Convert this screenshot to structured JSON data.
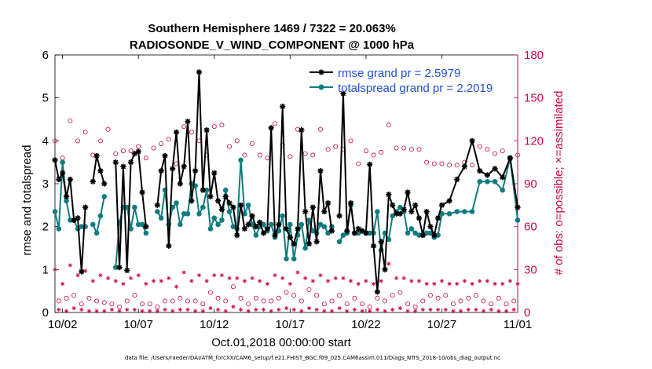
{
  "colors": {
    "rmse": "#000000",
    "totalspread": "#117c7f",
    "obs": "#c8094f",
    "legend_text": "#1f4fd8"
  },
  "chart_data": {
    "type": "line",
    "title": "Southern Hemisphere 1469 / 7322 = 20.063%",
    "subtitle": "RADIOSONDE_V_WIND_COMPONENT @ 1000 hPa",
    "xlabel": "Oct.01,2018 00:00:00 start",
    "ylabel": "rmse and totalspread",
    "y2label": "# of obs: o=possible; ×=assimilated",
    "footer": "data file: /Users/raeder/DAI/ATM_forcXX/CAM6_setup/f.e21.FHIST_BGC.f09_025.CAM6assim.011/Diags_NTrS_2018-10/obs_diag_output.nc",
    "x_unit": "days since Oct.01,2018 00:00:00",
    "xlim": [
      0.5,
      31.0
    ],
    "ylim": [
      0,
      6
    ],
    "y2lim": [
      0,
      180
    ],
    "x_ticks": [
      1,
      6,
      11,
      16,
      21,
      26,
      31
    ],
    "x_tick_labels": [
      "10/02",
      "10/07",
      "10/12",
      "10/17",
      "10/22",
      "10/27",
      "11/01"
    ],
    "y_ticks": [
      0,
      1,
      2,
      3,
      4,
      5,
      6
    ],
    "y2_ticks": [
      0,
      30,
      60,
      90,
      120,
      150,
      180
    ],
    "legend_position": "top-right",
    "series": [
      {
        "name": "rmse grand pr = 2.5979",
        "axis": "left",
        "marker": "asterisk",
        "x": [
          0.5,
          0.75,
          1.0,
          1.25,
          1.5,
          1.75,
          2.0,
          2.25,
          2.5,
          2.75,
          3.0,
          3.25,
          3.5,
          3.75,
          4.0,
          4.5,
          4.75,
          5.0,
          5.25,
          5.5,
          5.75,
          6.0,
          6.25,
          6.5,
          7.0,
          7.25,
          7.5,
          7.75,
          8.0,
          8.25,
          8.5,
          8.75,
          9.0,
          9.25,
          9.5,
          9.75,
          10.0,
          10.25,
          10.5,
          10.75,
          11.0,
          11.25,
          11.5,
          11.75,
          12.0,
          12.25,
          12.5,
          12.75,
          13.0,
          13.25,
          13.5,
          13.75,
          14.0,
          14.25,
          14.5,
          14.75,
          15.0,
          15.25,
          15.5,
          15.75,
          16.0,
          16.25,
          16.5,
          16.75,
          17.0,
          17.25,
          17.5,
          17.75,
          18.0,
          18.25,
          18.5,
          18.75,
          19.0,
          19.25,
          19.5,
          19.75,
          20.0,
          20.25,
          20.5,
          20.75,
          21.0,
          21.25,
          21.5,
          21.75,
          22.0,
          22.25,
          22.5,
          22.75,
          23.0,
          23.25,
          23.5,
          23.75,
          24.0,
          24.25,
          24.5,
          24.75,
          25.0,
          25.25,
          25.5,
          25.75,
          26.0,
          26.5,
          27.0,
          27.5,
          28.0,
          28.5,
          29.0,
          29.5,
          30.0,
          30.5,
          31.0
        ],
        "values": [
          3.55,
          3.1,
          3.25,
          2.7,
          3.1,
          2.15,
          2.2,
          0.95,
          2.45,
          null,
          3.05,
          3.65,
          3.3,
          3.0,
          null,
          3.5,
          1.05,
          3.4,
          0.98,
          3.5,
          3.7,
          3.75,
          2.8,
          2.0,
          null,
          2.5,
          3.3,
          3.65,
          1.55,
          3.35,
          4.2,
          3.0,
          3.4,
          4.45,
          2.6,
          3.3,
          5.6,
          2.85,
          4.25,
          2.7,
          3.25,
          2.6,
          2.4,
          2.7,
          2.55,
          2.45,
          1.8,
          2.5,
          1.95,
          2.05,
          2.25,
          2.0,
          2.1,
          1.85,
          1.95,
          4.3,
          1.8,
          2.05,
          4.8,
          1.95,
          1.75,
          1.6,
          1.95,
          4.25,
          2.35,
          1.6,
          2.45,
          1.65,
          3.3,
          2.35,
          2.55,
          1.9,
          null,
          2.25,
          5.1,
          1.9,
          2.55,
          1.85,
          1.95,
          1.9,
          1.85,
          3.45,
          1.55,
          0.48,
          1.65,
          1.0,
          2.75,
          2.5,
          2.3,
          2.3,
          2.4,
          2.8,
          2.35,
          2.5,
          2.2,
          1.8,
          2.35,
          2.0,
          1.8,
          2.2,
          2.5,
          2.6,
          3.1,
          3.4,
          4.0,
          3.3,
          3.2,
          3.35,
          3.15,
          3.6,
          2.45
        ],
        "gaps_at": [
          2.75,
          4.0,
          7.0,
          19.0
        ]
      },
      {
        "name": "totalspread grand pr = 2.2019",
        "axis": "left",
        "marker": "filled-circle",
        "x": [
          0.5,
          0.75,
          1.0,
          1.25,
          1.5,
          1.75,
          2.0,
          2.25,
          2.5,
          2.75,
          3.0,
          3.25,
          3.5,
          3.75,
          4.0,
          4.5,
          4.75,
          5.0,
          5.25,
          5.5,
          5.75,
          6.0,
          6.25,
          6.5,
          7.0,
          7.25,
          7.5,
          7.75,
          8.0,
          8.25,
          8.5,
          8.75,
          9.0,
          9.25,
          9.5,
          9.75,
          10.0,
          10.25,
          10.5,
          10.75,
          11.0,
          11.25,
          11.5,
          11.75,
          12.0,
          12.25,
          12.5,
          12.75,
          13.0,
          13.25,
          13.5,
          13.75,
          14.0,
          14.25,
          14.5,
          14.75,
          15.0,
          15.25,
          15.5,
          15.75,
          16.0,
          16.25,
          16.5,
          16.75,
          17.0,
          17.25,
          17.5,
          17.75,
          18.0,
          18.25,
          18.5,
          18.75,
          19.0,
          19.25,
          19.5,
          19.75,
          20.0,
          20.25,
          20.5,
          20.75,
          21.0,
          21.25,
          21.5,
          21.75,
          22.0,
          22.25,
          22.5,
          22.75,
          23.0,
          23.25,
          23.5,
          23.75,
          24.0,
          24.25,
          24.5,
          24.75,
          25.0,
          25.25,
          25.5,
          25.75,
          26.0,
          26.5,
          27.0,
          27.5,
          28.0,
          28.5,
          29.0,
          29.5,
          30.0,
          30.5,
          31.0
        ],
        "values": [
          2.35,
          1.95,
          3.5,
          2.6,
          2.15,
          2.15,
          1.95,
          2.0,
          2.0,
          null,
          2.05,
          1.85,
          2.25,
          2.7,
          null,
          1.05,
          2.1,
          2.45,
          2.45,
          1.95,
          2.45,
          2.05,
          2.05,
          1.85,
          null,
          2.35,
          2.2,
          2.85,
          2.05,
          2.45,
          2.55,
          2.05,
          2.3,
          2.3,
          3.0,
          2.95,
          2.3,
          2.45,
          2.85,
          1.95,
          2.2,
          2.05,
          2.15,
          2.85,
          2.35,
          2.0,
          1.95,
          3.55,
          2.3,
          2.5,
          2.05,
          1.8,
          2.0,
          2.05,
          1.9,
          2.05,
          1.75,
          1.9,
          2.25,
          1.25,
          2.05,
          1.25,
          1.8,
          2.05,
          1.5,
          2.15,
          1.9,
          1.85,
          2.05,
          2.0,
          1.85,
          2.0,
          null,
          1.65,
          1.8,
          1.85,
          2.5,
          1.85,
          1.85,
          1.9,
          1.85,
          1.85,
          1.85,
          2.35,
          1.45,
          1.85,
          1.7,
          2.25,
          2.35,
          2.45,
          2.35,
          1.85,
          1.95,
          1.85,
          1.8,
          1.8,
          1.85,
          1.85,
          1.75,
          1.8,
          2.3,
          2.3,
          2.35,
          2.35,
          2.35,
          3.05,
          3.05,
          3.05,
          2.85,
          3.6,
          2.15
        ],
        "gaps_at": [
          2.75,
          4.0,
          7.0,
          19.0
        ]
      },
      {
        "name": "obs possible",
        "axis": "right",
        "marker": "open-circle",
        "x": [
          0.5,
          0.75,
          1.0,
          1.25,
          1.5,
          1.75,
          2.0,
          2.25,
          2.5,
          2.75,
          3.0,
          3.25,
          3.5,
          3.75,
          4.0,
          4.25,
          4.5,
          4.75,
          5.0,
          5.25,
          5.5,
          5.75,
          6.0,
          6.25,
          6.5,
          6.75,
          7.0,
          7.25,
          7.5,
          7.75,
          8.0,
          8.25,
          8.5,
          8.75,
          9.0,
          9.25,
          9.5,
          9.75,
          10.0,
          10.25,
          10.5,
          10.75,
          11.0,
          11.25,
          11.5,
          11.75,
          12.0,
          12.25,
          12.5,
          12.75,
          13.0,
          13.25,
          13.5,
          13.75,
          14.0,
          14.25,
          14.5,
          14.75,
          15.0,
          15.25,
          15.5,
          15.75,
          16.0,
          16.25,
          16.5,
          16.75,
          17.0,
          17.25,
          17.5,
          17.75,
          18.0,
          18.25,
          18.5,
          18.75,
          19.0,
          19.25,
          19.5,
          19.75,
          20.0,
          20.25,
          20.5,
          20.75,
          21.0,
          21.25,
          21.5,
          21.75,
          22.0,
          22.25,
          22.5,
          22.75,
          23.0,
          23.25,
          23.5,
          23.75,
          24.0,
          24.25,
          24.5,
          24.75,
          25.0,
          25.25,
          25.5,
          25.75,
          26.0,
          26.25,
          26.5,
          26.75,
          27.0,
          27.25,
          27.5,
          27.75,
          28.0,
          28.25,
          28.5,
          28.75,
          29.0,
          29.25,
          29.5,
          29.75,
          30.0,
          30.25,
          30.5,
          30.75,
          31.0
        ],
        "values": [
          120,
          8,
          108,
          10,
          134,
          12,
          120,
          6,
          126,
          10,
          110,
          8,
          120,
          7,
          128,
          6,
          111,
          4,
          113,
          8,
          113,
          12,
          116,
          6,
          108,
          6,
          115,
          4,
          118,
          8,
          121,
          8,
          104,
          10,
          130,
          8,
          126,
          8,
          120,
          6,
          110,
          14,
          130,
          10,
          131,
          8,
          116,
          18,
          120,
          10,
          110,
          6,
          118,
          10,
          110,
          8,
          108,
          8,
          132,
          10,
          117,
          14,
          109,
          12,
          128,
          8,
          111,
          16,
          110,
          12,
          128,
          6,
          114,
          8,
          116,
          12,
          114,
          6,
          120,
          10,
          104,
          6,
          113,
          4,
          110,
          10,
          112,
          8,
          131,
          12,
          115,
          14,
          115,
          6,
          114,
          4,
          114,
          8,
          105,
          12,
          104,
          10,
          104,
          12,
          103,
          6,
          103,
          8,
          105,
          10,
          103,
          12,
          116,
          8,
          114,
          6,
          111,
          10,
          113,
          6,
          107,
          8,
          110
        ]
      },
      {
        "name": "obs assimilated",
        "axis": "right",
        "marker": "asterisk",
        "x": [
          0.5,
          0.75,
          1.0,
          1.25,
          1.5,
          1.75,
          2.0,
          2.25,
          2.5,
          2.75,
          3.0,
          3.25,
          3.5,
          3.75,
          4.0,
          4.25,
          4.5,
          4.75,
          5.0,
          5.25,
          5.5,
          5.75,
          6.0,
          6.25,
          6.5,
          6.75,
          7.0,
          7.25,
          7.5,
          7.75,
          8.0,
          8.25,
          8.5,
          8.75,
          9.0,
          9.25,
          9.5,
          9.75,
          10.0,
          10.25,
          10.5,
          10.75,
          11.0,
          11.25,
          11.5,
          11.75,
          12.0,
          12.25,
          12.5,
          12.75,
          13.0,
          13.25,
          13.5,
          13.75,
          14.0,
          14.25,
          14.5,
          14.75,
          15.0,
          15.25,
          15.5,
          15.75,
          16.0,
          16.25,
          16.5,
          16.75,
          17.0,
          17.25,
          17.5,
          17.75,
          18.0,
          18.25,
          18.5,
          18.75,
          19.0,
          19.25,
          19.5,
          19.75,
          20.0,
          20.25,
          20.5,
          20.75,
          21.0,
          21.25,
          21.5,
          21.75,
          22.0,
          22.25,
          22.5,
          22.75,
          23.0,
          23.25,
          23.5,
          23.75,
          24.0,
          24.25,
          24.5,
          24.75,
          25.0,
          25.25,
          25.5,
          25.75,
          26.0,
          26.25,
          26.5,
          26.75,
          27.0,
          27.25,
          27.5,
          27.75,
          28.0,
          28.25,
          28.5,
          28.75,
          29.0,
          29.25,
          29.5,
          29.75,
          30.0,
          30.25,
          30.5,
          30.75,
          31.0
        ],
        "values": [
          30,
          2,
          20,
          1,
          33,
          3,
          26,
          2,
          29,
          1,
          22,
          1,
          26,
          1,
          24,
          2,
          22,
          1,
          20,
          2,
          24,
          2,
          26,
          1,
          20,
          1,
          22,
          1,
          22,
          2,
          24,
          1,
          18,
          2,
          28,
          2,
          22,
          1,
          26,
          1,
          22,
          3,
          26,
          2,
          26,
          1,
          24,
          4,
          24,
          2,
          22,
          1,
          24,
          2,
          22,
          2,
          20,
          1,
          26,
          2,
          24,
          3,
          20,
          2,
          28,
          1,
          24,
          3,
          22,
          2,
          26,
          1,
          22,
          1,
          24,
          3,
          24,
          1,
          22,
          2,
          20,
          1,
          22,
          1,
          20,
          2,
          22,
          1,
          34,
          2,
          24,
          3,
          24,
          1,
          22,
          1,
          22,
          2,
          20,
          2,
          20,
          2,
          22,
          2,
          20,
          1,
          20,
          1,
          22,
          2,
          20,
          2,
          22,
          1,
          22,
          2,
          20,
          1,
          20,
          1,
          22,
          2,
          20
        ]
      }
    ]
  }
}
